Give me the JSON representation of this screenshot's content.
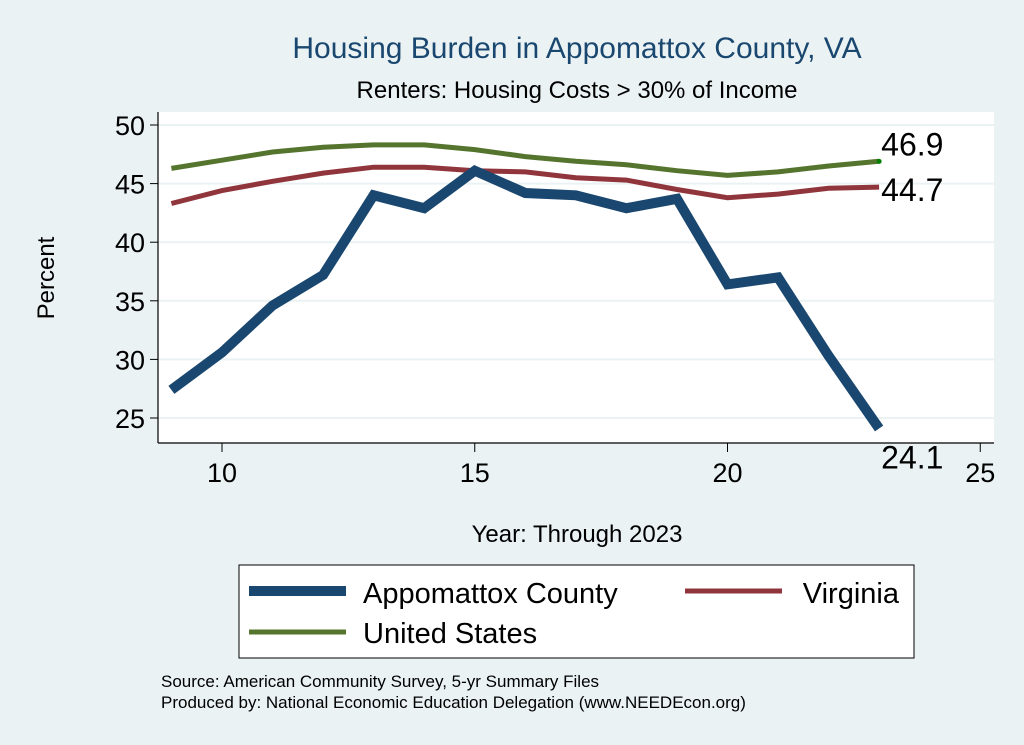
{
  "chart_data": {
    "type": "line",
    "title": "Housing Burden in Appomattox County, VA",
    "subtitle": "Renters: Housing Costs > 30% of Income",
    "xlabel": "Year: Through 2023",
    "ylabel": "Percent",
    "xlim": [
      8.7,
      25.4
    ],
    "ylim": [
      22.8,
      51
    ],
    "xticks": [
      10,
      15,
      20,
      25
    ],
    "yticks": [
      25,
      30,
      35,
      40,
      45,
      50
    ],
    "grid": true,
    "legend_position": "bottom",
    "x": [
      9,
      10,
      11,
      12,
      13,
      14,
      15,
      16,
      17,
      18,
      19,
      20,
      21,
      22,
      23
    ],
    "series": [
      {
        "name": "Appomattox County",
        "color": "#1a476f",
        "width": "thick",
        "values": [
          27.4,
          30.6,
          34.6,
          37.2,
          44.0,
          42.9,
          46.1,
          44.2,
          44.0,
          42.9,
          43.7,
          36.4,
          37.0,
          30.3,
          24.1
        ],
        "end_label": "24.1"
      },
      {
        "name": "Virginia",
        "color": "#90353b",
        "width": "thin",
        "values": [
          43.3,
          44.4,
          45.2,
          45.9,
          46.4,
          46.4,
          46.1,
          46.0,
          45.5,
          45.3,
          44.5,
          43.8,
          44.1,
          44.6,
          44.7
        ],
        "end_label": "44.7"
      },
      {
        "name": "United States",
        "color": "#55752f",
        "width": "thin",
        "values": [
          46.3,
          47.0,
          47.7,
          48.1,
          48.3,
          48.3,
          47.9,
          47.3,
          46.9,
          46.6,
          46.1,
          45.7,
          46.0,
          46.5,
          46.9
        ],
        "end_label": "46.9"
      }
    ],
    "notes": [
      "Source: American Community Survey, 5-yr Summary Files",
      "Produced by: National Economic Education Delegation (www.NEEDEcon.org)"
    ]
  },
  "legend": {
    "items": [
      {
        "label": "Appomattox County"
      },
      {
        "label": "Virginia"
      },
      {
        "label": "United States"
      }
    ]
  }
}
